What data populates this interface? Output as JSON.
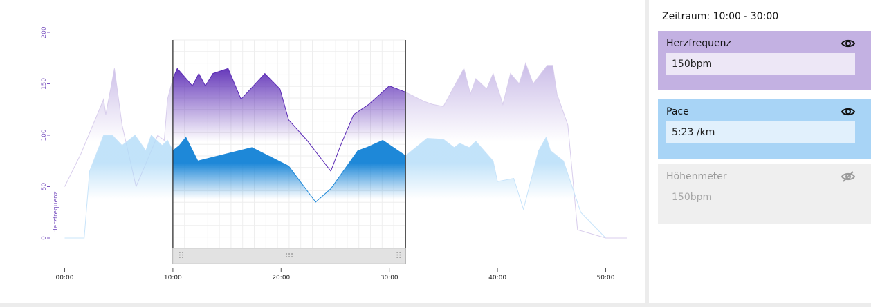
{
  "sidebar": {
    "period_label": "Zeitraum: 10:00 - 30:00",
    "cards": [
      {
        "title": "Herzfrequenz",
        "value": "150bpm",
        "visible": true,
        "icon": "eye-icon",
        "color": "#c3b1e2"
      },
      {
        "title": "Pace",
        "value": "5:23 /km",
        "visible": true,
        "icon": "eye-icon",
        "color": "#a8d4f6"
      },
      {
        "title": "Höhenmeter",
        "value": "150bpm",
        "visible": false,
        "icon": "eye-off-icon",
        "color": "#efefef"
      }
    ]
  },
  "chart_data": {
    "type": "area",
    "ylabel": "Herzfrequenz",
    "ylim": [
      0,
      200
    ],
    "yticks": [
      0,
      50,
      100,
      150,
      200
    ],
    "xlim": [
      0,
      50
    ],
    "xticks": [
      "00:00",
      "10:00",
      "20:00",
      "30:00",
      "40:00",
      "50:00"
    ],
    "selection": {
      "start": 10,
      "end": 31.5
    },
    "colors": {
      "heart_rate": "#5b2bb5",
      "pace": "#1e88d8"
    },
    "series": [
      {
        "key": "heart_rate",
        "x": [
          0,
          1.5,
          3.6,
          3.8,
          4.6,
          5.3,
          6.6,
          7.6,
          8.6,
          9.2,
          9.5,
          10,
          10.4,
          11.8,
          12.4,
          13.0,
          13.7,
          15.1,
          16.3,
          18.5,
          19.9,
          20.7,
          22.4,
          24.6,
          25.5,
          26.7,
          28.1,
          30.0,
          31.5,
          33.2,
          34.0,
          35.0,
          36.9,
          37.5,
          38.0,
          39.0,
          39.6,
          40.5,
          41.2,
          42.0,
          42.6,
          43.3,
          44.6,
          45.1,
          45.5,
          46.5,
          47.4,
          50.0,
          52.0
        ],
        "y": [
          50,
          82,
          135,
          120,
          165,
          110,
          50,
          75,
          100,
          95,
          135,
          155,
          165,
          148,
          160,
          148,
          160,
          165,
          135,
          160,
          145,
          115,
          95,
          65,
          90,
          120,
          130,
          148,
          142,
          133,
          130,
          128,
          165,
          140,
          155,
          145,
          160,
          130,
          160,
          150,
          170,
          150,
          168,
          168,
          140,
          110,
          8,
          0,
          0
        ]
      },
      {
        "key": "pace",
        "x": [
          0,
          0.3,
          1.8,
          2.3,
          3.6,
          4.4,
          5.3,
          6.5,
          7.5,
          8.0,
          9.0,
          9.5,
          10,
          10.6,
          11.2,
          12.3,
          17.3,
          20.7,
          23.2,
          24.6,
          27.1,
          27.9,
          29.4,
          31.5,
          33.5,
          35.0,
          36.0,
          36.5,
          37.4,
          38.0,
          39.6,
          40.0,
          41.5,
          42.4,
          43.8,
          44.5,
          44.9,
          46.1,
          47.7,
          50.0
        ],
        "y": [
          0,
          0,
          0,
          65,
          100,
          100,
          90,
          100,
          85,
          100,
          90,
          95,
          85,
          90,
          98,
          75,
          88,
          70,
          35,
          48,
          85,
          88,
          95,
          80,
          97,
          96,
          88,
          92,
          88,
          94,
          75,
          55,
          58,
          28,
          85,
          98,
          85,
          75,
          25,
          0
        ]
      }
    ]
  }
}
